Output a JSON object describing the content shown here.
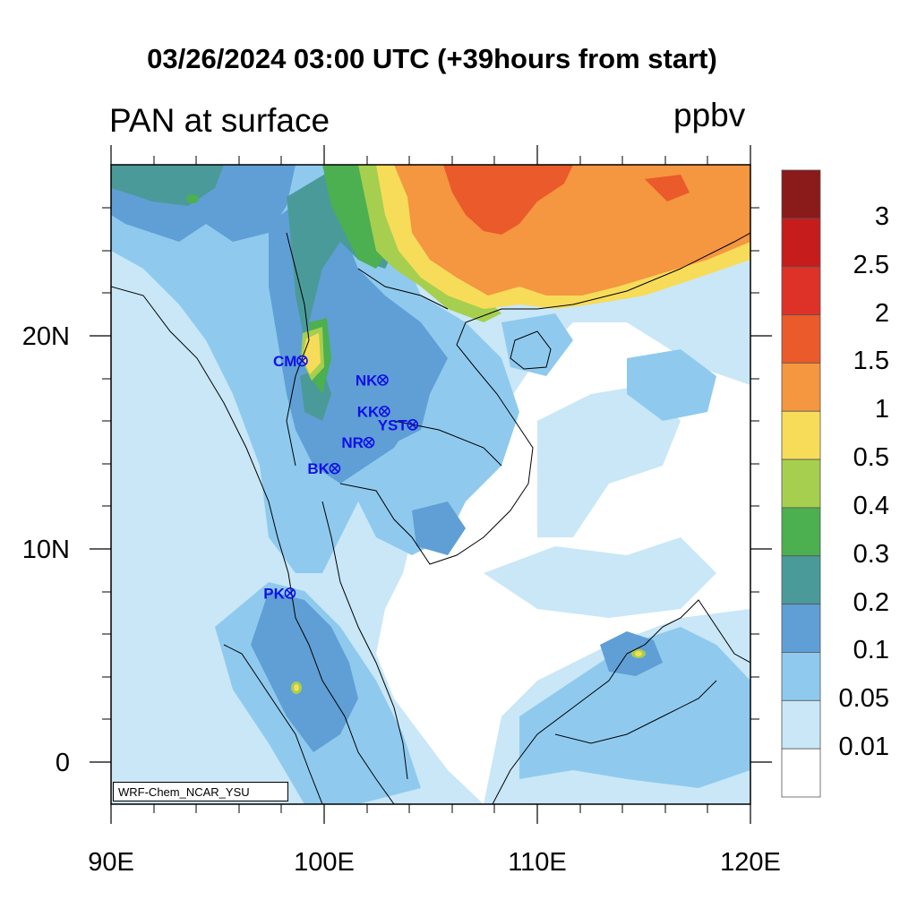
{
  "title": "03/26/2024 03:00 UTC (+39hours from start)",
  "left_string": "PAN at surface",
  "right_string": "ppbv",
  "credit": "WRF-Chem_NCAR_YSU",
  "lon_labels": [
    "90E",
    "100E",
    "110E",
    "120E"
  ],
  "lat_labels": [
    "20N",
    "10N",
    "0"
  ],
  "colorbar": {
    "labels": [
      "3",
      "2.5",
      "2",
      "1.5",
      "1",
      "0.5",
      "0.4",
      "0.3",
      "0.2",
      "0.1",
      "0.05",
      "0.01"
    ],
    "colors": [
      "#8b1a1a",
      "#c71c1c",
      "#de3128",
      "#ea5a2a",
      "#f59640",
      "#f7dc5a",
      "#a6cf4f",
      "#4caf50",
      "#4b9a9a",
      "#5f9fd5",
      "#8fcaee",
      "#c9e7f7",
      "#ffffff"
    ]
  },
  "stations": [
    {
      "name": "CM",
      "lon": 98.97,
      "lat": 18.8
    },
    {
      "name": "NK",
      "lon": 102.75,
      "lat": 17.9
    },
    {
      "name": "KK",
      "lon": 102.83,
      "lat": 16.43
    },
    {
      "name": "YST",
      "lon": 104.15,
      "lat": 15.8
    },
    {
      "name": "NR",
      "lon": 102.1,
      "lat": 14.97
    },
    {
      "name": "BK",
      "lon": 100.5,
      "lat": 13.75
    },
    {
      "name": "PK",
      "lon": 98.4,
      "lat": 7.9
    }
  ]
}
